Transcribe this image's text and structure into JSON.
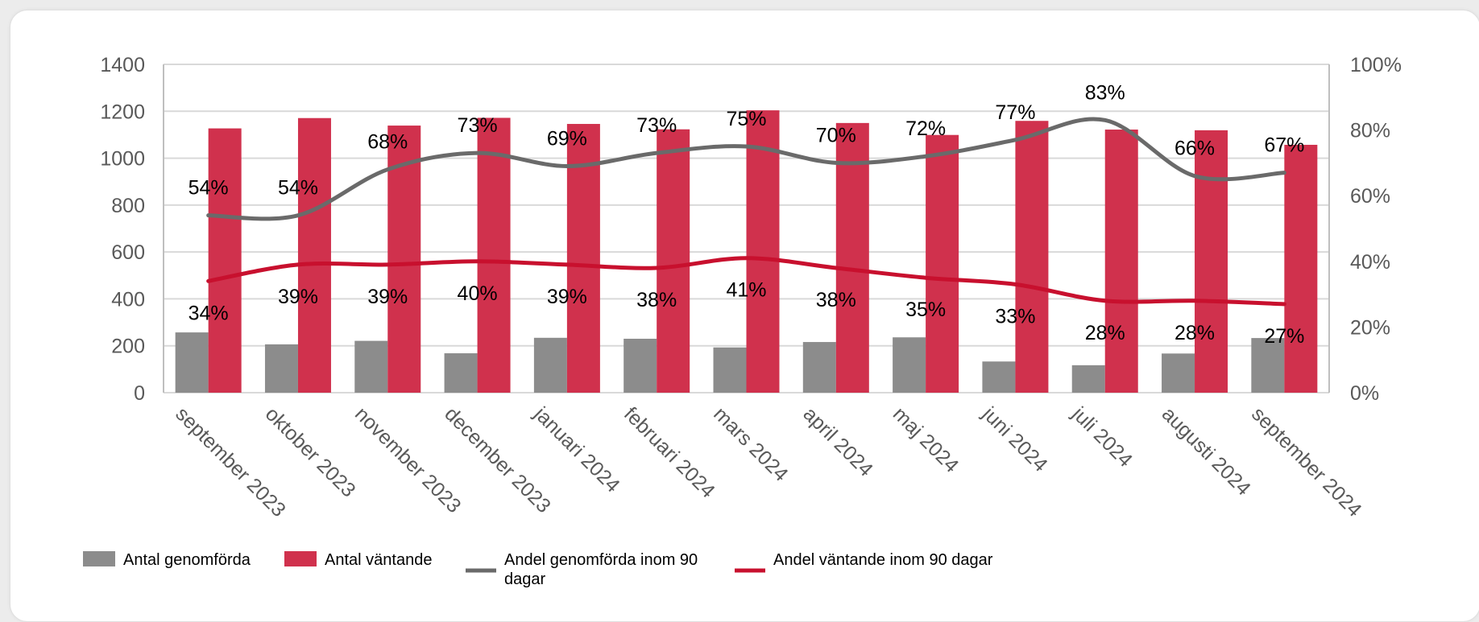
{
  "chart_data": {
    "type": "bar",
    "categories": [
      "september 2023",
      "oktober 2023",
      "november 2023",
      "december 2023",
      "januari 2024",
      "februari 2024",
      "mars 2024",
      "april 2024",
      "maj 2024",
      "juni 2024",
      "juli 2024",
      "augusti 2024",
      "september 2024"
    ],
    "series": [
      {
        "name": "Antal genomförda",
        "kind": "bar",
        "axis": "left",
        "color": "#8c8c8c",
        "values": [
          257,
          206,
          221,
          168,
          234,
          230,
          193,
          216,
          236,
          133,
          117,
          167,
          233
        ]
      },
      {
        "name": "Antal väntande",
        "kind": "bar",
        "axis": "left",
        "color": "#d0314d",
        "values": [
          1127,
          1171,
          1139,
          1172,
          1146,
          1123,
          1204,
          1150,
          1099,
          1159,
          1122,
          1119,
          1057
        ]
      },
      {
        "name": "Andel genomförda inom 90 dagar",
        "kind": "line",
        "axis": "right",
        "color": "#6a6a6a",
        "values": [
          54,
          54,
          68,
          73,
          69,
          73,
          75,
          70,
          72,
          77,
          83,
          66,
          67
        ],
        "labels": [
          "54%",
          "54%",
          "68%",
          "73%",
          "69%",
          "73%",
          "75%",
          "70%",
          "72%",
          "77%",
          "83%",
          "66%",
          "67%"
        ]
      },
      {
        "name": "Andel väntande inom 90 dagar",
        "kind": "line",
        "axis": "right",
        "color": "#c8102e",
        "values": [
          34,
          39,
          39,
          40,
          39,
          38,
          41,
          38,
          35,
          33,
          28,
          28,
          27
        ],
        "labels": [
          "34%",
          "39%",
          "39%",
          "40%",
          "39%",
          "38%",
          "41%",
          "38%",
          "35%",
          "33%",
          "28%",
          "28%",
          "27%"
        ]
      }
    ],
    "y_left": {
      "min": 0,
      "max": 1400,
      "ticks": [
        "0",
        "200",
        "400",
        "600",
        "800",
        "1000",
        "1200",
        "1400"
      ]
    },
    "y_right": {
      "min": 0,
      "max": 100,
      "ticks": [
        "0%",
        "20%",
        "40%",
        "60%",
        "80%",
        "100%"
      ]
    },
    "grid": true,
    "legend_position": "bottom-left",
    "legend": [
      "Antal genomförda",
      "Antal väntande",
      "Andel genomförda inom 90 dagar",
      "Andel väntande inom 90 dagar"
    ]
  }
}
